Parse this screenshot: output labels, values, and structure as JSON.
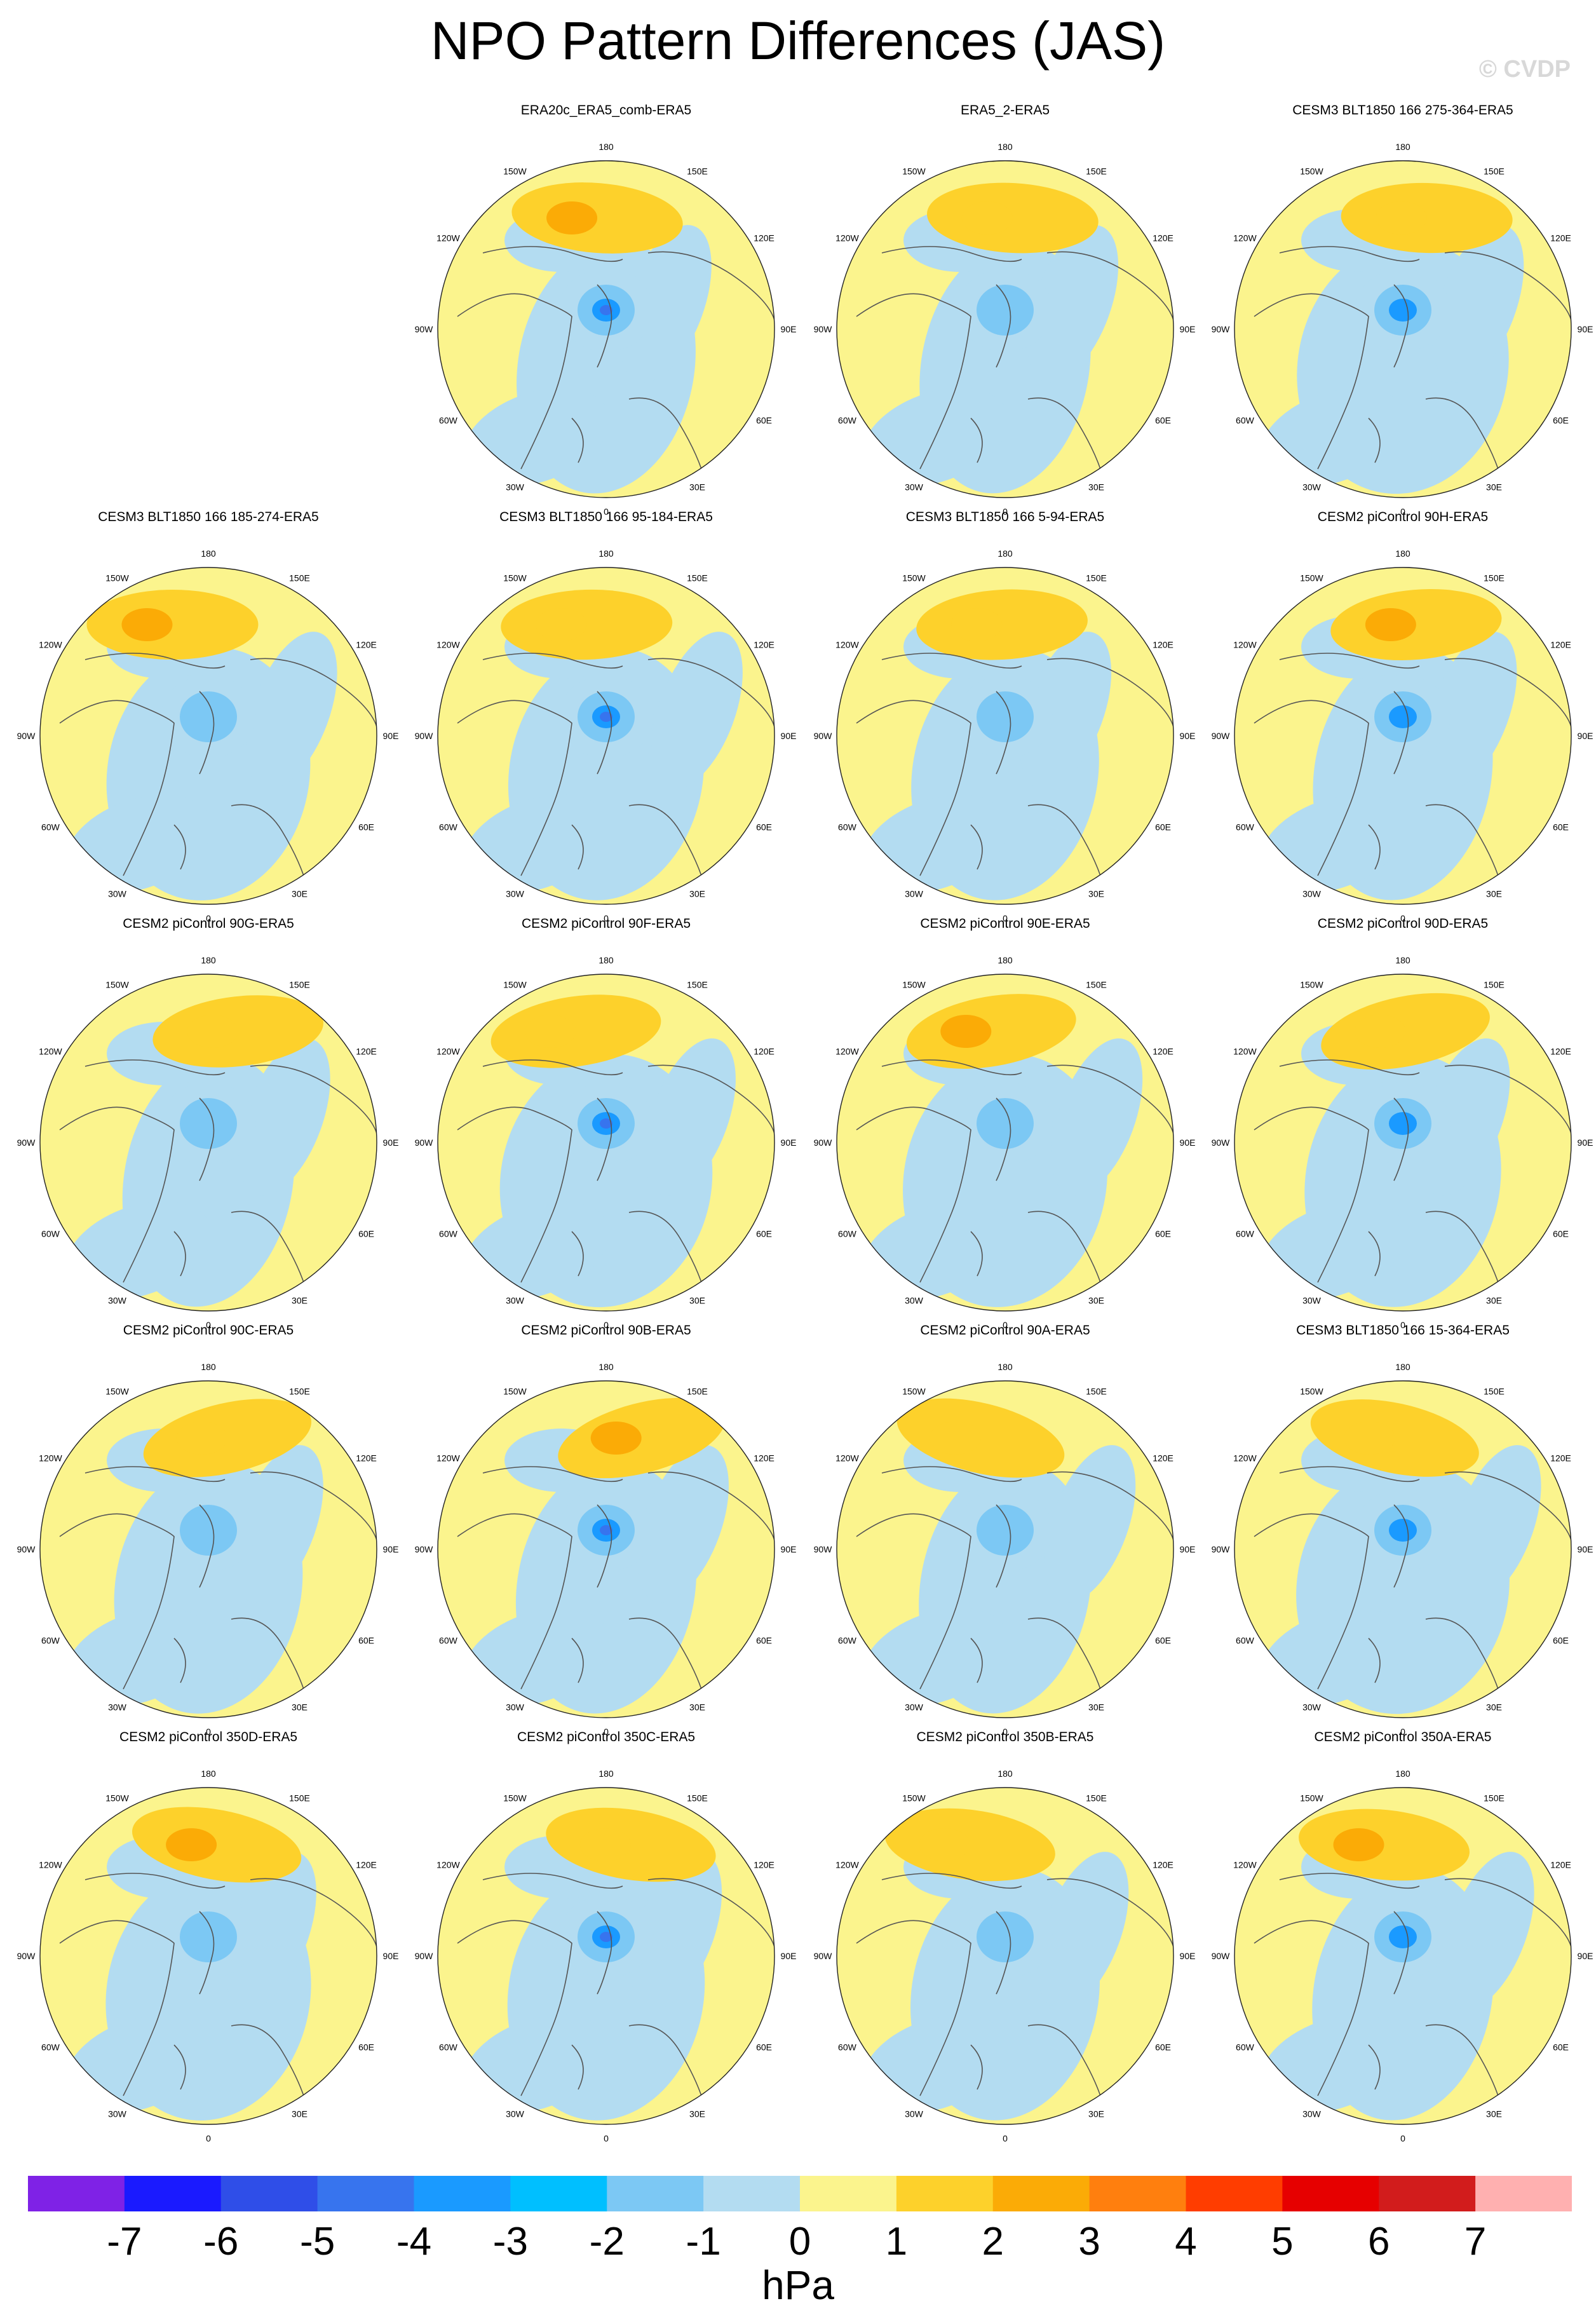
{
  "title": "NPO Pattern Differences (JAS)",
  "watermark": "© CVDP",
  "units": "hPa",
  "colorbar": {
    "colors": [
      "#7f22e6",
      "#1a1aff",
      "#2f4ee8",
      "#3774ee",
      "#1a9aff",
      "#00bfff",
      "#7cc8f4",
      "#b3dcf1",
      "#fbf48d",
      "#fdd12b",
      "#fbab06",
      "#ff7f0e",
      "#ff3d00",
      "#e60000",
      "#d21c1c",
      "#ffb0b0"
    ],
    "tick_labels": [
      "-7",
      "-6",
      "-5",
      "-4",
      "-3",
      "-2",
      "-1",
      "0",
      "1",
      "2",
      "3",
      "4",
      "5",
      "6",
      "7"
    ]
  },
  "map_style": {
    "ocean_positive": "#fbf48d",
    "negative_weak": "#b3dcf1",
    "negative_mid": "#7cc8f4",
    "negative_strong": "#1a9aff",
    "negative_core": "#3774ee",
    "positive_weak": "#fdd12b",
    "positive_mid": "#fbab06",
    "positive_strong": "#ff7f0e",
    "coast": "#555555"
  },
  "longitude_labels": [
    "180",
    "150E",
    "120E",
    "90E",
    "60E",
    "30E",
    "0",
    "30W",
    "60W",
    "90W",
    "120W",
    "150W"
  ],
  "panels": [
    {
      "title": "ERA20c_ERA5_comb-ERA5",
      "row": 0,
      "col": 1
    },
    {
      "title": "ERA5_2-ERA5",
      "row": 0,
      "col": 2
    },
    {
      "title": "CESM3 BLT1850 166 275-364-ERA5",
      "row": 0,
      "col": 3
    },
    {
      "title": "CESM3 BLT1850 166 185-274-ERA5",
      "row": 1,
      "col": 0
    },
    {
      "title": "CESM3 BLT1850 166 95-184-ERA5",
      "row": 1,
      "col": 1
    },
    {
      "title": "CESM3 BLT1850 166 5-94-ERA5",
      "row": 1,
      "col": 2
    },
    {
      "title": "CESM2 piControl 90H-ERA5",
      "row": 1,
      "col": 3
    },
    {
      "title": "CESM2 piControl 90G-ERA5",
      "row": 2,
      "col": 0
    },
    {
      "title": "CESM2 piControl 90F-ERA5",
      "row": 2,
      "col": 1
    },
    {
      "title": "CESM2 piControl 90E-ERA5",
      "row": 2,
      "col": 2
    },
    {
      "title": "CESM2 piControl 90D-ERA5",
      "row": 2,
      "col": 3
    },
    {
      "title": "CESM2 piControl 90C-ERA5",
      "row": 3,
      "col": 0
    },
    {
      "title": "CESM2 piControl 90B-ERA5",
      "row": 3,
      "col": 1
    },
    {
      "title": "CESM2 piControl 90A-ERA5",
      "row": 3,
      "col": 2
    },
    {
      "title": "CESM3 BLT1850 166 15-364-ERA5",
      "row": 3,
      "col": 3
    },
    {
      "title": "CESM2 piControl 350D-ERA5",
      "row": 4,
      "col": 0
    },
    {
      "title": "CESM2 piControl 350C-ERA5",
      "row": 4,
      "col": 1
    },
    {
      "title": "CESM2 piControl 350B-ERA5",
      "row": 4,
      "col": 2
    },
    {
      "title": "CESM2 piControl 350A-ERA5",
      "row": 4,
      "col": 3
    }
  ]
}
